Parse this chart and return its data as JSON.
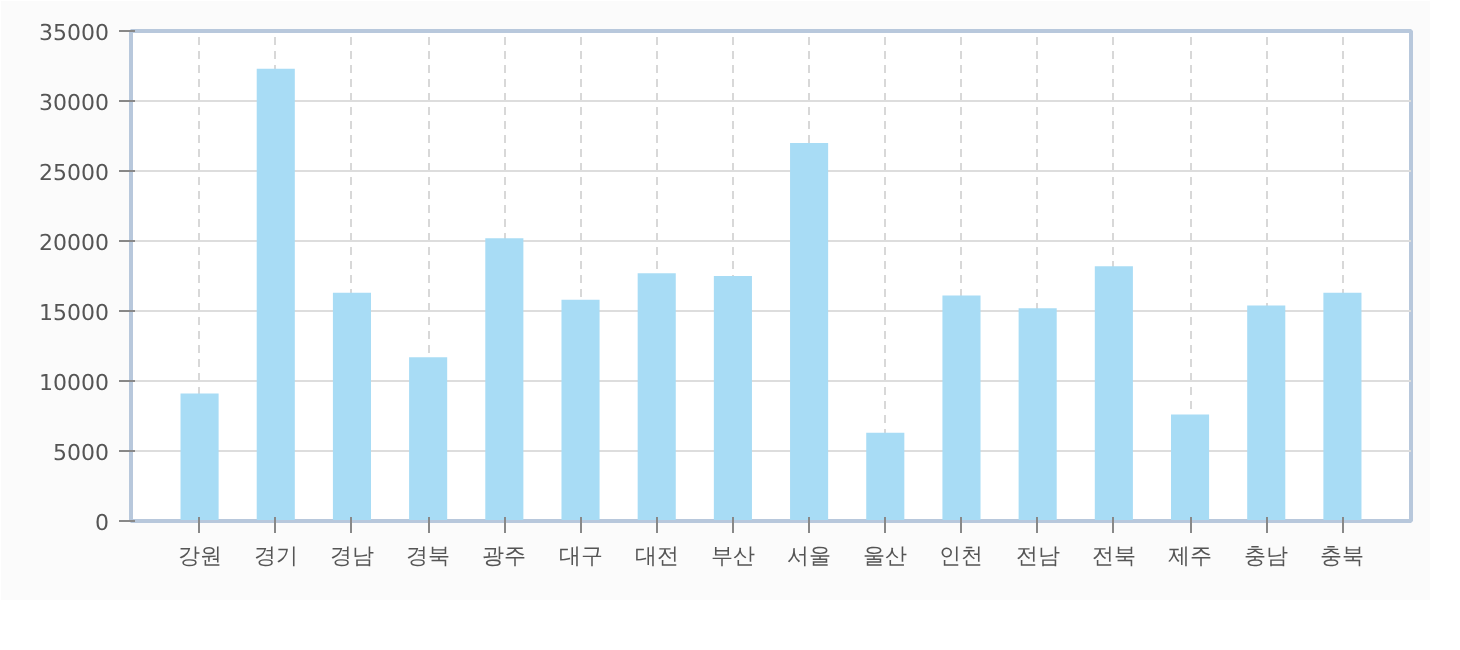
{
  "chart_data": {
    "type": "bar",
    "categories": [
      "강원",
      "경기",
      "경남",
      "경북",
      "광주",
      "대구",
      "대전",
      "부산",
      "서울",
      "울산",
      "인천",
      "전남",
      "전북",
      "제주",
      "충남",
      "충북"
    ],
    "series": [
      {
        "color": "#a8dcf5",
        "values": [
          9100,
          32300,
          16300,
          11700,
          20200,
          15800,
          17700,
          17500,
          27000,
          6300,
          16100,
          15200,
          18200,
          7600,
          15400,
          16300
        ]
      }
    ],
    "ylim": [
      0,
      35000
    ],
    "yticks": [
      0,
      5000,
      10000,
      15000,
      20000,
      25000,
      30000,
      35000
    ],
    "grid": true
  }
}
